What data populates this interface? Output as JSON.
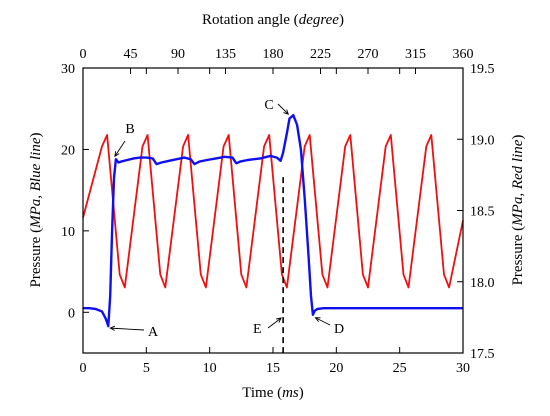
{
  "chart_data": {
    "type": "line",
    "title": "",
    "x_axis_bottom": {
      "label_prefix": "Time (",
      "label_italic": "ms",
      "label_suffix": ")",
      "range": [
        0,
        30
      ],
      "ticks": [
        "0",
        "5",
        "10",
        "15",
        "20",
        "25",
        "30"
      ]
    },
    "x_axis_top": {
      "label_prefix": "Rotation angle (",
      "label_italic": "degree",
      "label_suffix": ")",
      "range": [
        0,
        360
      ],
      "ticks": [
        "0",
        "45",
        "90",
        "135",
        "180",
        "225",
        "270",
        "315",
        "360"
      ]
    },
    "y_axis_left": {
      "label_prefix": "Pressure (",
      "label_italic": "MPa, Blue line",
      "label_suffix": ")",
      "range": [
        -5,
        30
      ],
      "ticks": [
        "0",
        "10",
        "20",
        "30"
      ]
    },
    "y_axis_right": {
      "label_prefix": "Pressure (",
      "label_italic": "MPa, Red line",
      "label_suffix": ")",
      "range": [
        17.5,
        19.5
      ],
      "ticks": [
        "17.5",
        "18.0",
        "18.5",
        "19.0",
        "19.5"
      ]
    },
    "series": [
      {
        "axis": "left",
        "color": "#1010ee",
        "x": [
          0,
          0.5,
          1.0,
          1.5,
          1.8,
          2.0,
          2.15,
          2.3,
          2.45,
          2.6,
          2.8,
          3.0,
          3.5,
          4.0,
          4.5,
          5.0,
          5.5,
          5.8,
          6.2,
          6.8,
          7.4,
          8.0,
          8.5,
          8.8,
          9.2,
          9.8,
          10.5,
          11.2,
          11.8,
          12.1,
          12.4,
          13.0,
          14.0,
          14.8,
          15.3,
          15.6,
          15.8,
          16.1,
          16.3,
          16.6,
          16.9,
          17.2,
          17.5,
          17.8,
          18.0,
          18.15,
          18.3,
          18.5,
          19.0,
          20.0,
          25.0,
          30.0
        ],
        "y": [
          0.5,
          0.5,
          0.4,
          0.1,
          -0.8,
          -1.7,
          2.0,
          10.0,
          16.5,
          18.8,
          18.4,
          18.5,
          18.7,
          18.9,
          19.0,
          19.0,
          18.9,
          18.2,
          18.4,
          18.6,
          18.8,
          19.0,
          18.8,
          18.2,
          18.5,
          18.7,
          18.9,
          19.1,
          19.0,
          18.3,
          18.5,
          18.7,
          18.9,
          19.2,
          19.0,
          18.6,
          19.6,
          22.0,
          23.8,
          24.2,
          23.0,
          20.0,
          14.0,
          7.0,
          2.0,
          -0.3,
          0.2,
          0.4,
          0.5,
          0.5,
          0.5,
          0.5
        ]
      },
      {
        "axis": "right",
        "color": "#ee1010",
        "x": [
          0.0,
          1.5,
          1.9,
          2.9,
          3.3,
          4.7,
          5.1,
          6.1,
          6.5,
          7.9,
          8.3,
          9.3,
          9.7,
          11.1,
          11.5,
          12.5,
          12.9,
          14.3,
          14.7,
          15.7,
          16.1,
          17.5,
          17.9,
          18.9,
          19.3,
          20.7,
          21.1,
          22.1,
          22.5,
          23.9,
          24.3,
          25.3,
          25.7,
          27.1,
          27.5,
          28.5,
          28.9,
          30.0
        ],
        "y": [
          18.45,
          18.95,
          19.03,
          18.05,
          17.96,
          18.95,
          19.03,
          18.05,
          17.96,
          18.95,
          19.03,
          18.05,
          17.96,
          18.95,
          19.03,
          18.05,
          17.96,
          18.95,
          19.03,
          18.05,
          17.96,
          18.95,
          19.03,
          18.05,
          17.96,
          18.95,
          19.03,
          18.05,
          17.96,
          18.95,
          19.03,
          18.05,
          17.96,
          18.95,
          19.03,
          18.05,
          17.96,
          18.43
        ]
      }
    ],
    "annotations": [
      {
        "label": "A",
        "x": 2.0,
        "y": -1.7
      },
      {
        "label": "B",
        "x": 2.6,
        "y": 18.8
      },
      {
        "label": "C",
        "x": 16.6,
        "y": 24.2
      },
      {
        "label": "D",
        "x": 18.2,
        "y": -0.3
      },
      {
        "label": "E",
        "x": 15.8,
        "y": -0.6
      }
    ],
    "dashed_line_x": 15.8,
    "grid": false,
    "legend": "none"
  }
}
